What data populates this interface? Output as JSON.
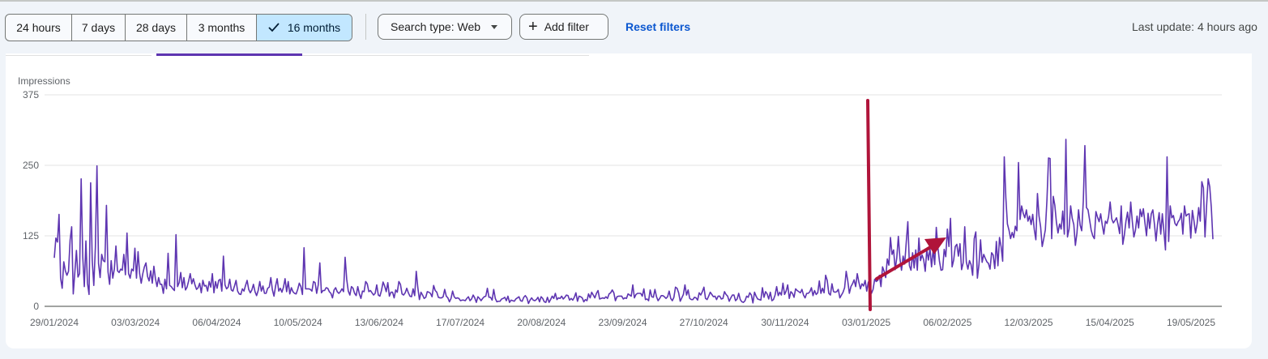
{
  "toolbar": {
    "ranges": [
      {
        "label": "24 hours",
        "active": false
      },
      {
        "label": "7 days",
        "active": false
      },
      {
        "label": "28 days",
        "active": false
      },
      {
        "label": "3 months",
        "active": false
      },
      {
        "label": "16 months",
        "active": true
      }
    ],
    "search_type_label": "Search type: Web",
    "add_filter_label": "Add filter",
    "reset_label": "Reset filters",
    "last_update": "Last update: 4 hours ago"
  },
  "colors": {
    "series": "#5e35b1",
    "annotation": "#b0143a",
    "active_range_bg": "#c2e7ff",
    "link": "#0b57d0"
  },
  "chart_data": {
    "type": "line",
    "ylabel": "Impressions",
    "ylim": [
      0,
      375
    ],
    "yticks": [
      "0",
      "125",
      "250",
      "375"
    ],
    "xticks": [
      "29/01/2024",
      "03/03/2024",
      "06/04/2024",
      "10/05/2024",
      "13/06/2024",
      "17/07/2024",
      "20/08/2024",
      "23/09/2024",
      "27/10/2024",
      "30/11/2024",
      "03/01/2025",
      "06/02/2025",
      "12/03/2025",
      "15/04/2025",
      "19/05/2025"
    ],
    "grid": true,
    "series": [
      {
        "x_start": "29/01/2024",
        "x_end": "29/05/2025",
        "values": [
          86,
          121,
          114,
          163,
          50,
          32,
          79,
          63,
          55,
          62,
          117,
          141,
          22,
          60,
          99,
          52,
          58,
          226,
          88,
          35,
          116,
          41,
          21,
          219,
          82,
          37,
          105,
          249,
          76,
          51,
          92,
          81,
          79,
          179,
          61,
          39,
          81,
          50,
          66,
          107,
          63,
          60,
          66,
          64,
          92,
          56,
          130,
          58,
          50,
          66,
          63,
          103,
          50,
          97,
          58,
          41,
          58,
          70,
          77,
          53,
          45,
          63,
          41,
          71,
          49,
          35,
          51,
          39,
          39,
          23,
          48,
          31,
          94,
          37,
          35,
          31,
          28,
          127,
          35,
          42,
          60,
          33,
          51,
          29,
          34,
          45,
          58,
          40,
          49,
          38,
          30,
          33,
          41,
          24,
          46,
          36,
          37,
          27,
          44,
          34,
          58,
          24,
          44,
          32,
          46,
          48,
          27,
          89,
          38,
          31,
          34,
          48,
          29,
          27,
          36,
          46,
          27,
          22,
          21,
          31,
          27,
          37,
          46,
          30,
          24,
          29,
          39,
          26,
          19,
          28,
          44,
          27,
          36,
          23,
          23,
          32,
          34,
          51,
          29,
          18,
          36,
          49,
          27,
          32,
          25,
          34,
          49,
          26,
          44,
          22,
          33,
          26,
          23,
          22,
          30,
          41,
          35,
          21,
          104,
          31,
          31,
          31,
          30,
          27,
          44,
          42,
          23,
          38,
          77,
          24,
          28,
          28,
          33,
          32,
          26,
          23,
          15,
          29,
          33,
          26,
          23,
          26,
          31,
          26,
          87,
          48,
          27,
          20,
          35,
          32,
          23,
          19,
          35,
          22,
          14,
          27,
          26,
          44,
          40,
          26,
          28,
          24,
          20,
          23,
          38,
          20,
          18,
          28,
          43,
          36,
          26,
          42,
          18,
          25,
          25,
          15,
          29,
          25,
          44,
          39,
          22,
          20,
          24,
          32,
          24,
          18,
          17,
          31,
          19,
          62,
          33,
          12,
          25,
          20,
          14,
          16,
          26,
          25,
          23,
          17,
          37,
          28,
          25,
          16,
          15,
          15,
          17,
          30,
          18,
          15,
          8,
          14,
          27,
          17,
          14,
          15,
          14,
          10,
          11,
          11,
          10,
          14,
          17,
          10,
          13,
          20,
          15,
          7,
          17,
          14,
          10,
          14,
          17,
          18,
          32,
          16,
          16,
          11,
          30,
          14,
          8,
          9,
          9,
          13,
          14,
          16,
          10,
          18,
          7,
          11,
          10,
          9,
          13,
          15,
          17,
          10,
          9,
          16,
          19,
          15,
          5,
          11,
          15,
          11,
          10,
          12,
          16,
          8,
          17,
          14,
          8,
          7,
          16,
          7,
          12,
          18,
          14,
          23,
          12,
          15,
          14,
          18,
          13,
          16,
          20,
          19,
          11,
          14,
          11,
          16,
          24,
          9,
          18,
          17,
          15,
          8,
          12,
          10,
          22,
          15,
          25,
          20,
          15,
          23,
          28,
          13,
          14,
          15,
          14,
          17,
          14,
          22,
          24,
          29,
          24,
          10,
          17,
          18,
          18,
          18,
          13,
          15,
          14,
          22,
          20,
          18,
          38,
          15,
          21,
          23,
          23,
          23,
          18,
          31,
          12,
          13,
          10,
          29,
          17,
          16,
          30,
          17,
          10,
          14,
          19,
          19,
          17,
          14,
          17,
          27,
          14,
          10,
          16,
          34,
          32,
          24,
          9,
          15,
          21,
          38,
          20,
          29,
          14,
          12,
          12,
          16,
          15,
          11,
          24,
          20,
          26,
          34,
          14,
          12,
          18,
          25,
          21,
          17,
          18,
          12,
          18,
          18,
          13,
          14,
          26,
          21,
          18,
          9,
          15,
          20,
          20,
          10,
          13,
          23,
          12,
          8,
          7,
          10,
          18,
          16,
          24,
          20,
          6,
          25,
          18,
          13,
          12,
          11,
          33,
          16,
          26,
          22,
          13,
          25,
          10,
          12,
          20,
          35,
          19,
          25,
          20,
          41,
          21,
          27,
          38,
          14,
          26,
          23,
          16,
          31,
          28,
          26,
          24,
          30,
          20,
          15,
          23,
          23,
          26,
          33,
          19,
          28,
          21,
          24,
          45,
          23,
          32,
          24,
          55,
          46,
          23,
          20,
          40,
          26,
          25,
          26,
          30,
          15,
          20,
          25,
          33,
          62,
          45,
          23,
          35,
          40,
          47,
          35,
          58,
          43,
          31,
          40,
          36,
          46,
          27,
          43,
          37,
          23,
          30,
          48,
          44,
          46,
          55,
          35,
          70,
          62,
          51,
          84,
          73,
          122,
          92,
          100,
          65,
          86,
          124,
          85,
          64,
          89,
          75,
          114,
          150,
          72,
          64,
          95,
          68,
          100,
          64,
          121,
          81,
          91,
          83,
          62,
          101,
          82,
          103,
          70,
          101,
          74,
          140,
          105,
          80,
          64,
          65,
          101,
          88,
          137,
          106,
          156,
          70,
          82,
          106,
          110,
          89,
          111,
          65,
          77,
          141,
          79,
          66,
          81,
          74,
          55,
          120,
          132,
          50,
          74,
          118,
          78,
          92,
          85,
          79,
          76,
          66,
          95,
          91,
          67,
          115,
          72,
          122,
          106,
          80,
          265,
          193,
          146,
          135,
          120,
          131,
          122,
          142,
          134,
          255,
          154,
          178,
          165,
          157,
          171,
          151,
          160,
          145,
          163,
          136,
          118,
          200,
          160,
          141,
          106,
          120,
          136,
          188,
          263,
          262,
          120,
          195,
          179,
          149,
          130,
          146,
          137,
          169,
          128,
          296,
          123,
          137,
          178,
          156,
          145,
          108,
          130,
          171,
          144,
          134,
          186,
          285,
          175,
          171,
          153,
          135,
          125,
          120,
          168,
          158,
          150,
          164,
          144,
          128,
          151,
          147,
          159,
          185,
          155,
          148,
          152,
          157,
          145,
          129,
          178,
          110,
          127,
          151,
          167,
          139,
          185,
          151,
          123,
          135,
          160,
          139,
          172,
          159,
          173,
          148,
          125,
          165,
          138,
          164,
          171,
          146,
          116,
          146,
          166,
          128,
          164,
          133,
          100,
          265,
          115,
          178,
          157,
          161,
          147,
          143,
          150,
          154,
          165,
          128,
          178,
          160,
          163,
          164,
          121,
          170,
          152,
          130,
          146,
          175,
          151,
          221,
          210,
          123,
          178,
          226,
          212,
          175,
          119
        ]
      }
    ]
  },
  "annotations": [
    {
      "type": "vertical-marker",
      "x": "03/01/2025"
    },
    {
      "type": "arrow",
      "direction": "up-right"
    }
  ]
}
